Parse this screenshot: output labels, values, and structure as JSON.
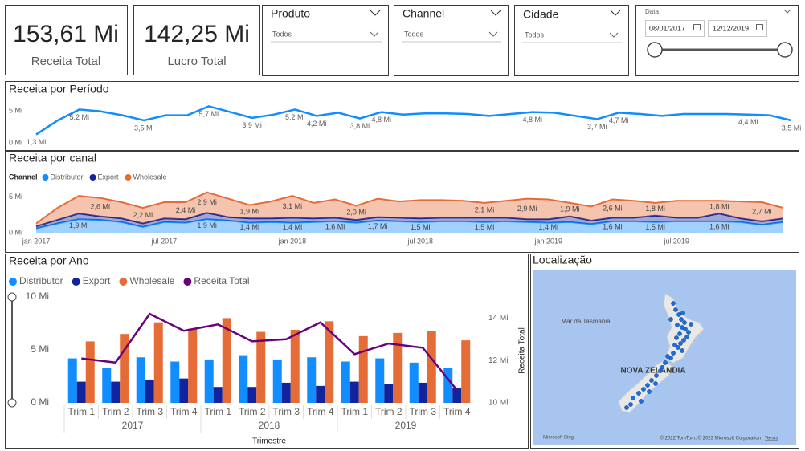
{
  "cards": [
    {
      "value": "153,61 Mi",
      "label": "Receita Total"
    },
    {
      "value": "142,25 Mi",
      "label": "Lucro Total"
    }
  ],
  "slicers": [
    {
      "title": "Produto",
      "selection": "Todos"
    },
    {
      "title": "Channel",
      "selection": "Todos"
    },
    {
      "title": "Cidade",
      "selection": "Todos"
    }
  ],
  "date_slicer": {
    "title": "Data",
    "start": "08/01/2017",
    "end": "12/12/2019"
  },
  "chart_data": [
    {
      "type": "line",
      "title": "Receita por Período",
      "color": "#118DFF",
      "values": [
        1.3,
        3.5,
        5.2,
        4.9,
        4.3,
        3.5,
        4.3,
        4.3,
        5.7,
        4.8,
        3.9,
        4.4,
        5.2,
        4.2,
        4.7,
        3.8,
        4.8,
        4.4,
        4.6,
        4.6,
        4.5,
        4.2,
        4.5,
        4.8,
        4.7,
        4.2,
        3.7,
        4.7,
        4.5,
        4.2,
        4.5,
        4.5,
        4.5,
        4.4,
        4.3,
        3.5
      ],
      "value_labels": [
        "1,3 Mi",
        null,
        "5,2 Mi",
        null,
        null,
        "3,5 Mi",
        null,
        null,
        "5,7 Mi",
        null,
        "3,9 Mi",
        null,
        "5,2 Mi",
        "4,2 Mi",
        null,
        "3,8 Mi",
        "4,8 Mi",
        null,
        null,
        null,
        null,
        null,
        null,
        "4,8 Mi",
        null,
        null,
        "3,7 Mi",
        "4,7 Mi",
        null,
        null,
        null,
        null,
        null,
        "4,4 Mi",
        null,
        "3,5 Mi"
      ],
      "ylim": [
        0,
        6.5
      ],
      "yticks": [
        {
          "value": 0,
          "label": "0 Mi"
        },
        {
          "value": 5,
          "label": "5 Mi"
        }
      ]
    },
    {
      "type": "area",
      "stacked": true,
      "title": "Receita por canal",
      "legend_title": "Channel",
      "categories": [
        "jan 2017",
        null,
        null,
        null,
        null,
        null,
        "jul 2017",
        null,
        null,
        null,
        null,
        null,
        "jan 2018",
        null,
        null,
        null,
        null,
        null,
        "jul 2018",
        null,
        null,
        null,
        null,
        null,
        "jan 2019",
        null,
        null,
        null,
        null,
        null,
        "jul 2019",
        null,
        null,
        null,
        null,
        null
      ],
      "series": [
        {
          "name": "Distributor",
          "color": "#118DFF",
          "values": [
            0.6,
            1.3,
            1.9,
            1.8,
            1.5,
            0.8,
            1.5,
            1.4,
            1.9,
            1.7,
            1.4,
            1.5,
            1.4,
            1.5,
            1.6,
            1.4,
            1.7,
            1.6,
            1.5,
            1.6,
            1.6,
            1.5,
            1.6,
            1.5,
            1.4,
            1.5,
            1.2,
            1.6,
            1.6,
            1.5,
            1.6,
            1.6,
            1.6,
            1.5,
            1.1,
            1.5
          ],
          "value_labels": [
            null,
            null,
            "1,9 Mi",
            null,
            null,
            null,
            null,
            null,
            "1,9 Mi",
            null,
            "1,4 Mi",
            null,
            "1,4 Mi",
            null,
            "1,6 Mi",
            null,
            "1,7 Mi",
            null,
            "1,5 Mi",
            null,
            null,
            "1,5 Mi",
            null,
            null,
            "1,4 Mi",
            null,
            null,
            "1,6 Mi",
            null,
            "1,5 Mi",
            null,
            null,
            "1,6 Mi",
            null,
            null,
            null
          ]
        },
        {
          "name": "Export",
          "color": "#12239E",
          "values": [
            0.3,
            0.5,
            0.8,
            0.5,
            0.5,
            0.5,
            0.5,
            0.5,
            0.9,
            0.5,
            0.6,
            0.5,
            0.7,
            0.5,
            0.5,
            0.4,
            0.5,
            0.5,
            0.5,
            0.5,
            0.5,
            0.6,
            0.5,
            0.4,
            0.5,
            0.8,
            0.5,
            0.5,
            0.5,
            0.9,
            0.5,
            0.5,
            1.1,
            0.5,
            0.5,
            0.5
          ]
        },
        {
          "name": "Wholesale",
          "color": "#E66C37",
          "values": [
            0.4,
            1.7,
            2.5,
            2.6,
            2.3,
            2.2,
            2.3,
            2.4,
            2.9,
            2.6,
            1.9,
            2.4,
            3.1,
            2.2,
            2.6,
            2.0,
            2.6,
            2.3,
            2.6,
            2.5,
            2.4,
            2.1,
            2.4,
            2.9,
            2.8,
            1.9,
            2.0,
            2.6,
            2.4,
            1.8,
            2.4,
            2.4,
            1.8,
            2.4,
            2.7,
            1.5
          ],
          "value_labels": [
            null,
            null,
            null,
            "2,6 Mi",
            null,
            "2,2 Mi",
            null,
            "2,4 Mi",
            "2,9 Mi",
            null,
            "1,9 Mi",
            null,
            "3,1 Mi",
            null,
            null,
            "2,0 Mi",
            null,
            null,
            null,
            null,
            null,
            "2,1 Mi",
            null,
            "2,9 Mi",
            null,
            "1,9 Mi",
            null,
            "2,6 Mi",
            null,
            "1,8 Mi",
            null,
            null,
            "1,8 Mi",
            null,
            "2,7 Mi",
            null
          ]
        }
      ],
      "ylim": [
        0,
        6
      ],
      "yticks": [
        {
          "value": 0,
          "label": "0 Mi"
        },
        {
          "value": 5,
          "label": "5 Mi"
        }
      ]
    },
    {
      "type": "combo",
      "title": "Receita por Ano",
      "xlabel": "Trimestre",
      "y2label": "Receita Total",
      "categories": [
        "Trim 1",
        "Trim 2",
        "Trim 3",
        "Trim 4",
        "Trim 1",
        "Trim 2",
        "Trim 3",
        "Trim 4",
        "Trim 1",
        "Trim 2",
        "Trim 3",
        "Trim 4"
      ],
      "groups": [
        "2017",
        "2018",
        "2019"
      ],
      "series": [
        {
          "name": "Distributor",
          "type": "bar",
          "color": "#118DFF",
          "values": [
            4.2,
            3.3,
            4.3,
            3.9,
            4.1,
            4.5,
            4.1,
            4.3,
            3.9,
            4.2,
            3.8,
            3.3
          ]
        },
        {
          "name": "Export",
          "type": "bar",
          "color": "#12239E",
          "values": [
            2.0,
            2.0,
            2.2,
            2.3,
            1.5,
            1.5,
            1.9,
            1.6,
            2.0,
            1.8,
            1.9,
            1.4
          ]
        },
        {
          "name": "Wholesale",
          "type": "bar",
          "color": "#E66C37",
          "values": [
            5.8,
            6.5,
            7.6,
            7.0,
            8.0,
            6.7,
            6.9,
            7.7,
            6.3,
            6.6,
            6.8,
            5.9
          ]
        },
        {
          "name": "Receita Total",
          "type": "line",
          "axis": "y2",
          "color": "#6B007B",
          "values": [
            12.1,
            11.9,
            14.2,
            13.4,
            13.7,
            12.9,
            13.0,
            13.8,
            12.3,
            12.8,
            12.6,
            10.6
          ]
        }
      ],
      "ylim": [
        0,
        10
      ],
      "yticks": [
        {
          "value": 0,
          "label": "0 Mi"
        },
        {
          "value": 5,
          "label": "5 Mi"
        },
        {
          "value": 10,
          "label": "10 Mi"
        }
      ],
      "y2lim": [
        10,
        15
      ],
      "y2ticks": [
        {
          "value": 10,
          "label": "10 Mi"
        },
        {
          "value": 12,
          "label": "12 Mi"
        },
        {
          "value": 14,
          "label": "14 Mi"
        }
      ]
    }
  ],
  "map": {
    "title": "Localização",
    "labels": [
      "Mar da Tasmânia",
      "NOVA ZELÂNDIA"
    ],
    "logo": "Microsoft Bing",
    "attribution": "© 2022 TomTom, © 2023 Microsoft Corporation",
    "terms": "Terms"
  }
}
